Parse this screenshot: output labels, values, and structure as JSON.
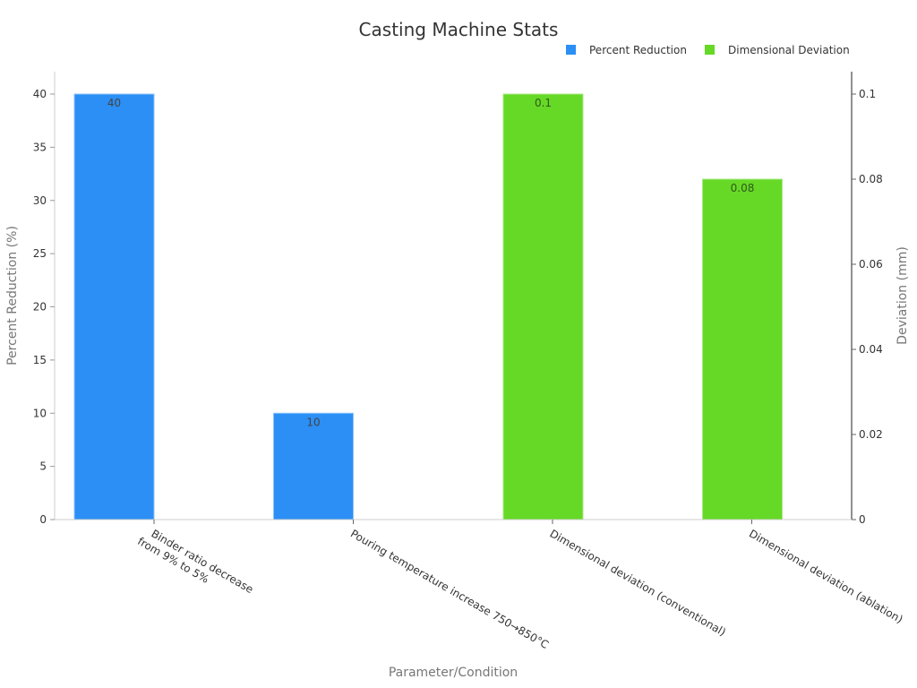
{
  "chart_data": {
    "type": "bar",
    "title": "Casting Machine Stats",
    "xlabel": "Parameter/Condition",
    "ylabel": "Percent Reduction (%)",
    "y2label": "Deviation (mm)",
    "categories": [
      "Binder ratio decrease from 9% to 5%",
      "Pouring temperature increase 750→850°C",
      "Dimensional deviation (conventional)",
      "Dimensional deviation (ablation)"
    ],
    "category_lines": [
      [
        "Binder ratio decrease",
        "from 9% to 5%"
      ],
      [
        "Pouring temperature increase 750→850°C"
      ],
      [
        "Dimensional deviation (conventional)"
      ],
      [
        "Dimensional deviation (ablation)"
      ]
    ],
    "series": [
      {
        "name": "Percent Reduction",
        "axis": "left",
        "color": "#2b8ff5",
        "values": [
          40,
          10,
          null,
          null
        ],
        "labels": [
          "40",
          "10",
          "",
          ""
        ]
      },
      {
        "name": "Dimensional Deviation",
        "axis": "right",
        "color": "#66d926",
        "values": [
          null,
          null,
          0.1,
          0.08
        ],
        "labels": [
          "",
          "",
          "0.1",
          "0.08"
        ]
      }
    ],
    "ylim": [
      0,
      42
    ],
    "yticks": [
      0,
      5,
      10,
      15,
      20,
      25,
      30,
      35,
      40
    ],
    "y2lim": [
      0,
      0.105
    ],
    "y2ticks": [
      "0",
      "0.02",
      "0.04",
      "0.06",
      "0.08",
      "0.1"
    ],
    "y2tick_values": [
      0,
      0.02,
      0.04,
      0.06,
      0.08,
      0.1
    ],
    "grid": false,
    "legend_position": "top-right"
  }
}
